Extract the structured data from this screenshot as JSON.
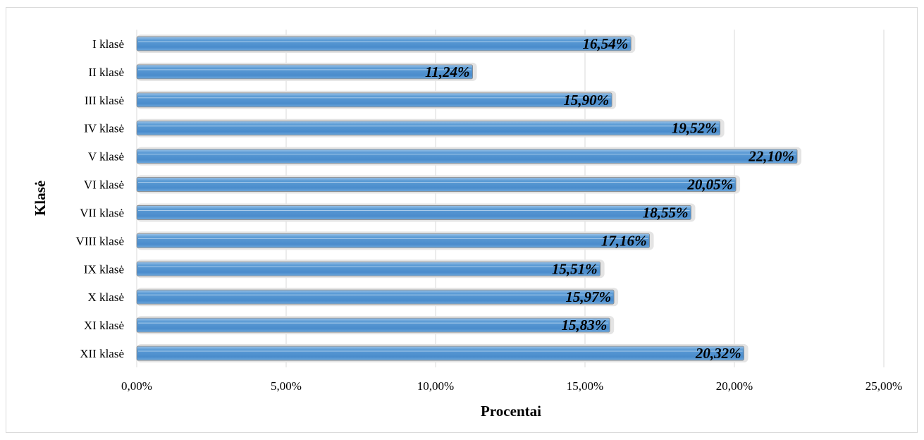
{
  "chart_data": {
    "type": "bar",
    "orientation": "horizontal",
    "categories": [
      "I klasė",
      "II klasė",
      "III klasė",
      "IV klasė",
      "V klasė",
      "VI klasė",
      "VII klasė",
      "VIII klasė",
      "IX klasė",
      "X klasė",
      "XI klasė",
      "XII klasė"
    ],
    "values": [
      16.54,
      11.24,
      15.9,
      19.52,
      22.1,
      20.05,
      18.55,
      17.16,
      15.51,
      15.97,
      15.83,
      20.32
    ],
    "data_labels": [
      "16,54%",
      "11,24%",
      "15,90%",
      "19,52%",
      "22,10%",
      "20,05%",
      "18,55%",
      "17,16%",
      "15,51%",
      "15,97%",
      "15,83%",
      "20,32%"
    ],
    "x_ticks": [
      0,
      5,
      10,
      15,
      20,
      25
    ],
    "x_tick_labels": [
      "0,00%",
      "5,00%",
      "10,00%",
      "15,00%",
      "20,00%",
      "25,00%"
    ],
    "xlim": [
      0,
      25
    ],
    "xlabel": "Procentai",
    "ylabel": "Klasė",
    "grid": true,
    "legend": "none",
    "bar_color": "#5b9bd5",
    "gridline_color": "#d9d9d9"
  }
}
